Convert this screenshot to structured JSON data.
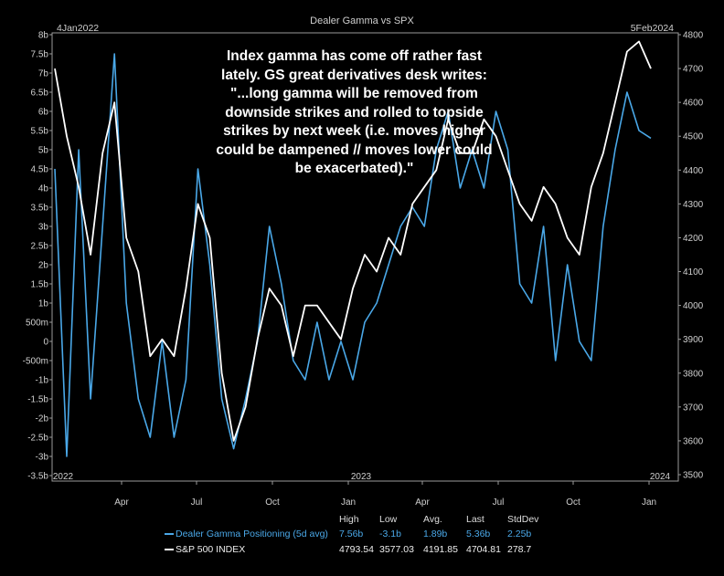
{
  "chart_data": {
    "type": "line",
    "title": "Dealer Gamma vs SPX",
    "start_label": "4Jan2022",
    "end_label": "5Feb2024",
    "annotation": "Index gamma has come off rather fast lately. GS great derivatives desk writes: \"...long gamma will be removed from downside strikes and rolled to topside strikes by next week (i.e. moves higher could be dampened // moves lower could be exacerbated).\"",
    "x_ticks": [
      "Apr",
      "Jul",
      "Oct",
      "Jan",
      "Apr",
      "Jul",
      "Oct",
      "Jan"
    ],
    "year_labels": [
      "2022",
      "2023",
      "2024"
    ],
    "left_axis": {
      "ylim": [
        -3.5,
        8
      ],
      "ticks": [
        "-3.5b",
        "-3b",
        "-2.5b",
        "-2b",
        "-1.5b",
        "-1b",
        "-500m",
        "0",
        "500m",
        "1b",
        "1.5b",
        "2b",
        "2.5b",
        "3b",
        "3.5b",
        "4b",
        "4.5b",
        "5b",
        "5.5b",
        "6b",
        "6.5b",
        "7b",
        "7.5b",
        "8b"
      ]
    },
    "right_axis": {
      "ylim": [
        3500,
        4800
      ],
      "ticks": [
        "3500",
        "3600",
        "3700",
        "3800",
        "3900",
        "4000",
        "4100",
        "4200",
        "4300",
        "4400",
        "4500",
        "4600",
        "4700",
        "4800"
      ]
    },
    "x": [
      0,
      2,
      4,
      6,
      8,
      10,
      12,
      14,
      16,
      18,
      20,
      22,
      24,
      26,
      28,
      30,
      32,
      34,
      36,
      38,
      40,
      42,
      44,
      46,
      48,
      50,
      52,
      54,
      56,
      58,
      60,
      62,
      64,
      66,
      68,
      70,
      72,
      74,
      76,
      78,
      80,
      82,
      84,
      86,
      88,
      90,
      92,
      94,
      96,
      98,
      100
    ],
    "series": [
      {
        "name": "Dealer Gamma Positioning (5d avg)",
        "axis": "left",
        "color": "#4aa8e8",
        "values": [
          4.5,
          -3.0,
          5.0,
          -1.5,
          3.0,
          7.5,
          1.0,
          -1.5,
          -2.5,
          0.0,
          -2.5,
          -1.0,
          4.5,
          2.0,
          -1.5,
          -2.8,
          -1.5,
          0.0,
          3.0,
          1.5,
          -0.5,
          -1.0,
          0.5,
          -1.0,
          0.0,
          -1.0,
          0.5,
          1.0,
          2.0,
          3.0,
          3.5,
          3.0,
          5.0,
          6.0,
          4.0,
          5.0,
          4.0,
          6.0,
          5.0,
          1.5,
          1.0,
          3.0,
          -0.5,
          2.0,
          0.0,
          -0.5,
          3.0,
          5.0,
          6.5,
          5.5,
          5.3
        ]
      },
      {
        "name": "S&P 500 INDEX",
        "axis": "right",
        "color": "#ffffff",
        "values": [
          4700,
          4500,
          4350,
          4150,
          4450,
          4600,
          4200,
          4100,
          3850,
          3900,
          3850,
          4050,
          4300,
          4200,
          3800,
          3600,
          3700,
          3900,
          4050,
          4000,
          3850,
          4000,
          4000,
          3950,
          3900,
          4050,
          4150,
          4100,
          4200,
          4150,
          4300,
          4350,
          4400,
          4550,
          4450,
          4450,
          4550,
          4500,
          4400,
          4300,
          4250,
          4350,
          4300,
          4200,
          4150,
          4350,
          4450,
          4600,
          4750,
          4780,
          4700
        ]
      }
    ],
    "legend": {
      "headers": [
        "High",
        "Low",
        "Avg.",
        "Last",
        "StdDev"
      ],
      "rows": [
        {
          "name": "Dealer Gamma Positioning (5d avg)",
          "color": "#4aa8e8",
          "stats": [
            "7.56b",
            "-3.1b",
            "1.89b",
            "5.36b",
            "2.25b"
          ]
        },
        {
          "name": "S&P 500 INDEX",
          "color": "#ffffff",
          "stats": [
            "4793.54",
            "3577.03",
            "4191.85",
            "4704.81",
            "278.7"
          ]
        }
      ]
    }
  }
}
